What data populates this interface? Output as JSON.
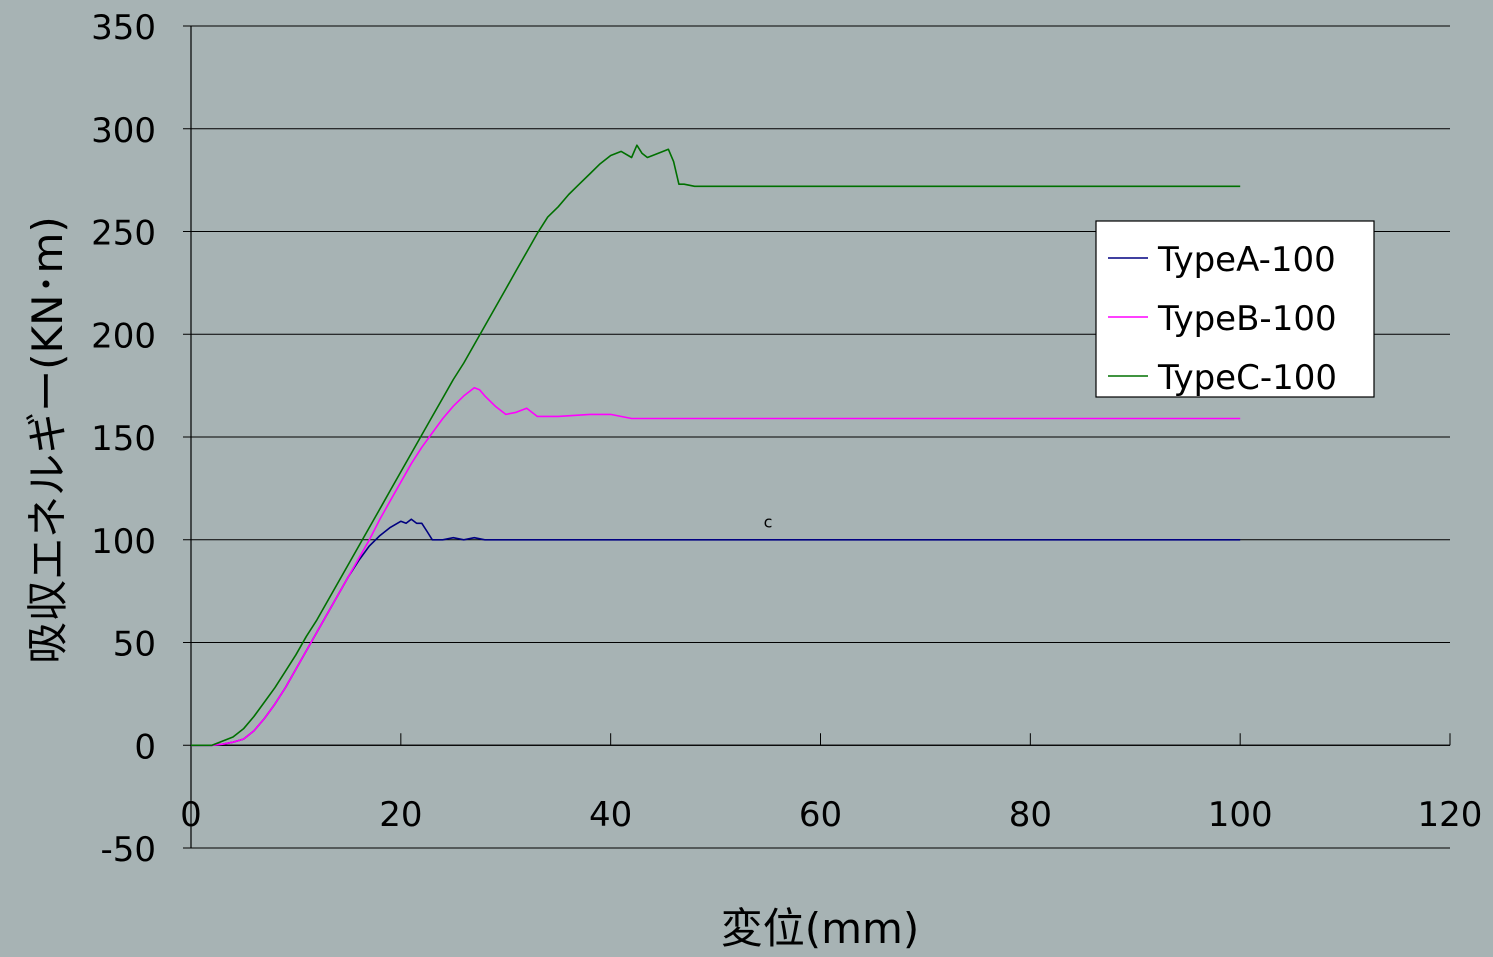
{
  "chart_data": {
    "type": "line",
    "title": "",
    "xlabel": "変位(mm)",
    "ylabel": "吸収エネルギー(KN･m)",
    "xlim": [
      0,
      120
    ],
    "ylim": [
      -50,
      350
    ],
    "x_ticks": [
      0,
      20,
      40,
      60,
      80,
      100,
      120
    ],
    "y_ticks": [
      -50,
      0,
      50,
      100,
      150,
      200,
      250,
      300,
      350
    ],
    "x_tick_labels": [
      "0",
      "20",
      "40",
      "60",
      "80",
      "100",
      "120"
    ],
    "y_tick_labels": [
      "-50",
      "0",
      "50",
      "100",
      "150",
      "200",
      "250",
      "300",
      "350"
    ],
    "grid": "horizontal",
    "legend_position": "right",
    "annotation": {
      "text": "c",
      "x": 55,
      "y": 106
    },
    "series": [
      {
        "name": "TypeA-100",
        "color": "#000080",
        "points": [
          [
            0,
            0
          ],
          [
            2,
            0
          ],
          [
            3,
            0.5
          ],
          [
            4,
            1.5
          ],
          [
            5,
            3
          ],
          [
            6,
            7
          ],
          [
            7,
            13
          ],
          [
            8,
            20
          ],
          [
            9,
            28
          ],
          [
            10,
            37
          ],
          [
            11,
            46
          ],
          [
            12,
            55
          ],
          [
            13,
            64
          ],
          [
            14,
            73
          ],
          [
            15,
            82
          ],
          [
            16,
            90
          ],
          [
            17,
            97
          ],
          [
            18,
            102
          ],
          [
            19,
            106
          ],
          [
            20,
            109
          ],
          [
            20.5,
            108
          ],
          [
            21,
            110
          ],
          [
            21.5,
            108
          ],
          [
            22,
            108
          ],
          [
            22.5,
            104
          ],
          [
            23,
            100
          ],
          [
            24,
            100
          ],
          [
            25,
            101
          ],
          [
            26,
            100
          ],
          [
            27,
            101
          ],
          [
            28,
            100
          ],
          [
            30,
            100
          ],
          [
            40,
            100
          ],
          [
            60,
            100
          ],
          [
            80,
            100
          ],
          [
            100,
            100
          ]
        ]
      },
      {
        "name": "TypeB-100",
        "color": "#ff00ff",
        "points": [
          [
            0,
            0
          ],
          [
            2,
            0
          ],
          [
            3,
            0.5
          ],
          [
            4,
            1.5
          ],
          [
            5,
            3
          ],
          [
            6,
            7
          ],
          [
            7,
            13
          ],
          [
            8,
            20
          ],
          [
            9,
            28
          ],
          [
            10,
            37
          ],
          [
            11,
            46
          ],
          [
            12,
            55
          ],
          [
            13,
            64
          ],
          [
            14,
            73
          ],
          [
            15,
            82
          ],
          [
            16,
            91
          ],
          [
            17,
            100
          ],
          [
            18,
            110
          ],
          [
            19,
            119
          ],
          [
            20,
            128
          ],
          [
            21,
            137
          ],
          [
            22,
            145
          ],
          [
            23,
            152
          ],
          [
            24,
            159
          ],
          [
            25,
            165
          ],
          [
            26,
            170
          ],
          [
            27,
            174
          ],
          [
            27.5,
            173
          ],
          [
            28,
            170
          ],
          [
            29,
            165
          ],
          [
            30,
            161
          ],
          [
            31,
            162
          ],
          [
            32,
            164
          ],
          [
            33,
            160
          ],
          [
            35,
            160
          ],
          [
            38,
            161
          ],
          [
            40,
            161
          ],
          [
            42,
            159
          ],
          [
            50,
            159
          ],
          [
            60,
            159
          ],
          [
            70,
            159
          ],
          [
            80,
            159
          ],
          [
            90,
            159
          ],
          [
            100,
            159
          ]
        ]
      },
      {
        "name": "TypeC-100",
        "color": "#007000",
        "points": [
          [
            0,
            0
          ],
          [
            2,
            0
          ],
          [
            3,
            2
          ],
          [
            4,
            4
          ],
          [
            5,
            8
          ],
          [
            6,
            14
          ],
          [
            7,
            21
          ],
          [
            8,
            28
          ],
          [
            9,
            36
          ],
          [
            10,
            44
          ],
          [
            11,
            53
          ],
          [
            12,
            61
          ],
          [
            13,
            70
          ],
          [
            14,
            79
          ],
          [
            15,
            88
          ],
          [
            16,
            97
          ],
          [
            17,
            106
          ],
          [
            18,
            115
          ],
          [
            19,
            124
          ],
          [
            20,
            133
          ],
          [
            21,
            142
          ],
          [
            22,
            151
          ],
          [
            23,
            160
          ],
          [
            24,
            169
          ],
          [
            25,
            178
          ],
          [
            26,
            186
          ],
          [
            27,
            195
          ],
          [
            28,
            204
          ],
          [
            29,
            213
          ],
          [
            30,
            222
          ],
          [
            31,
            231
          ],
          [
            32,
            240
          ],
          [
            33,
            249
          ],
          [
            34,
            257
          ],
          [
            35,
            262
          ],
          [
            36,
            268
          ],
          [
            37,
            273
          ],
          [
            38,
            278
          ],
          [
            39,
            283
          ],
          [
            40,
            287
          ],
          [
            41,
            289
          ],
          [
            42,
            286
          ],
          [
            42.5,
            292
          ],
          [
            43,
            288
          ],
          [
            43.5,
            286
          ],
          [
            44,
            287
          ],
          [
            45,
            289
          ],
          [
            45.5,
            290
          ],
          [
            46,
            284
          ],
          [
            46.5,
            273
          ],
          [
            47,
            273
          ],
          [
            48,
            272
          ],
          [
            50,
            272
          ],
          [
            60,
            272
          ],
          [
            70,
            272
          ],
          [
            80,
            272
          ],
          [
            90,
            272
          ],
          [
            100,
            272
          ]
        ]
      }
    ]
  }
}
